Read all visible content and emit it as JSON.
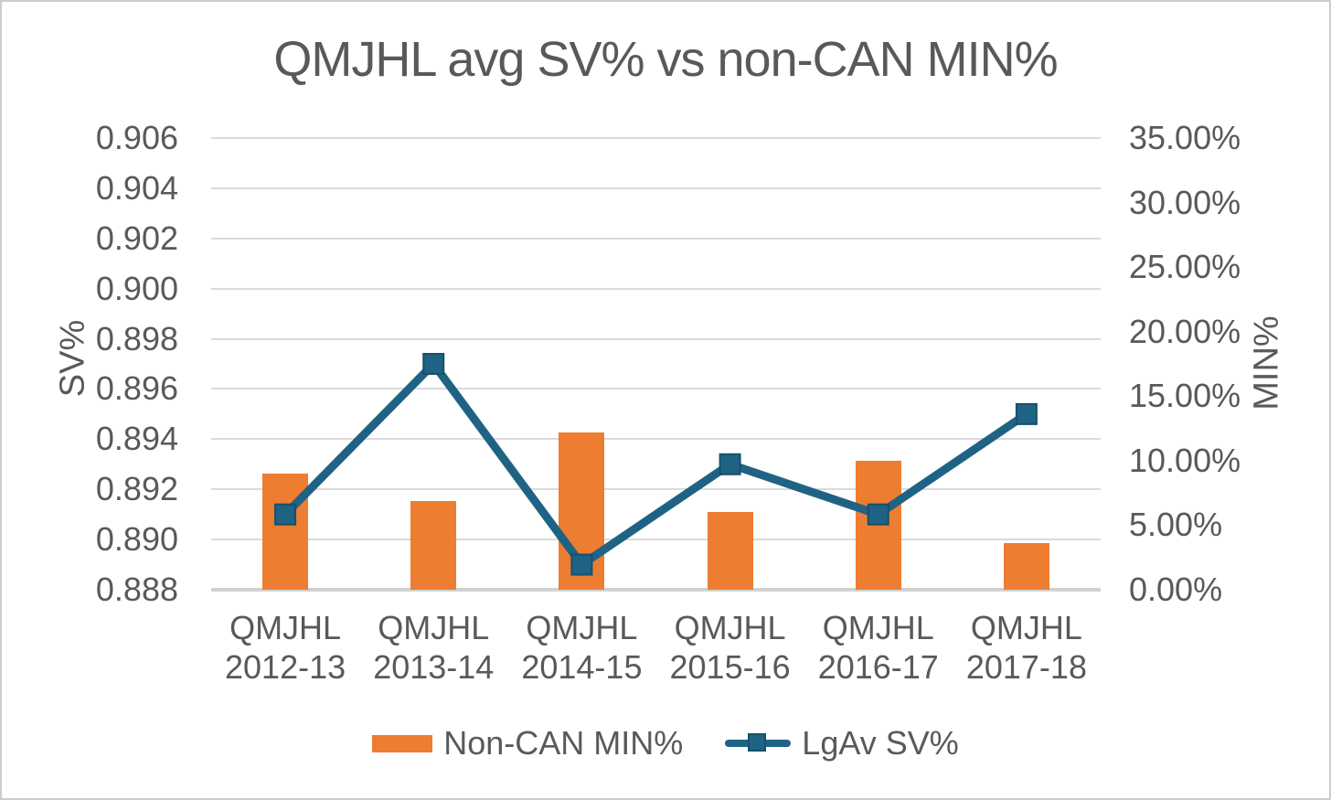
{
  "window": {
    "background": "#ffffff",
    "border_color": "#cccccc"
  },
  "chart_data": {
    "type": "combo-bar-line",
    "title": "QMJHL avg SV% vs non-CAN MIN%",
    "categories": [
      "QMJHL 2012-13",
      "QMJHL 2013-14",
      "QMJHL 2014-15",
      "QMJHL 2015-16",
      "QMJHL 2016-17",
      "QMJHL 2017-18"
    ],
    "series": [
      {
        "name": "Non-CAN MIN%",
        "type": "bar",
        "axis": "right",
        "color": "#ED7D31",
        "values": [
          9.0,
          6.9,
          12.2,
          6.0,
          10.0,
          3.6
        ],
        "unit": "%"
      },
      {
        "name": "LgAv SV%",
        "type": "line",
        "axis": "left",
        "color": "#1F6384",
        "marker": "square",
        "marker_border_color": "#17506B",
        "values": [
          0.891,
          0.897,
          0.889,
          0.893,
          0.891,
          0.895
        ]
      }
    ],
    "left_axis": {
      "label": "SV%",
      "min": 0.888,
      "max": 0.906,
      "ticks": [
        "0.906",
        "0.904",
        "0.902",
        "0.900",
        "0.898",
        "0.896",
        "0.894",
        "0.892",
        "0.890",
        "0.888"
      ]
    },
    "right_axis": {
      "label": "MIN%",
      "min": 0,
      "max": 35,
      "ticks": [
        "35.00%",
        "30.00%",
        "25.00%",
        "20.00%",
        "15.00%",
        "10.00%",
        "5.00%",
        "0.00%"
      ]
    },
    "grid": true,
    "legend_position": "bottom",
    "colors": {
      "grid": "#DADADA",
      "axis_line": "#D1D1D1",
      "text": "#595959"
    }
  }
}
